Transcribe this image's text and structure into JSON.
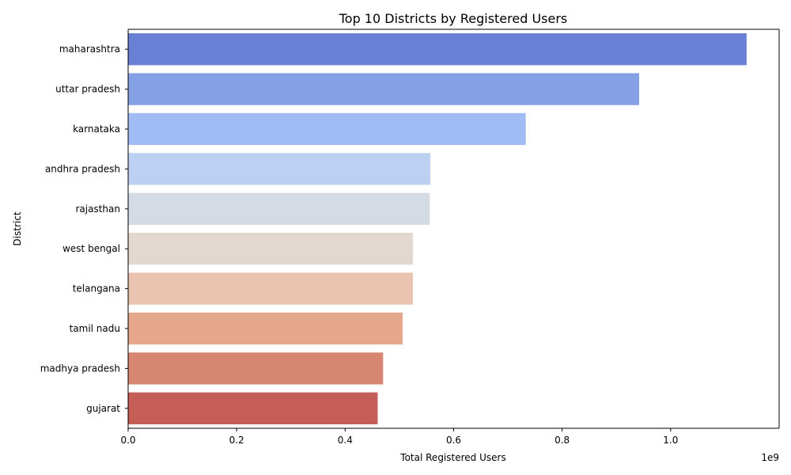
{
  "chart_data": {
    "type": "bar",
    "orientation": "horizontal",
    "title": "Top 10 Districts by Registered Users",
    "xlabel": "Total Registered Users",
    "ylabel": "District",
    "x_offset_text": "1e9",
    "xlim": [
      0,
      1200000000
    ],
    "x_ticks": [
      0,
      200000000,
      400000000,
      600000000,
      800000000,
      1000000000
    ],
    "x_tick_labels": [
      "0.0",
      "0.2",
      "0.4",
      "0.6",
      "0.8",
      "1.0"
    ],
    "grid": false,
    "categories": [
      "maharashtra",
      "uttar pradesh",
      "karnataka",
      "andhra pradesh",
      "rajasthan",
      "west bengal",
      "telangana",
      "tamil nadu",
      "madhya pradesh",
      "gujarat"
    ],
    "values": [
      1140000000,
      942000000,
      733000000,
      557000000,
      556000000,
      525000000,
      525000000,
      506000000,
      470000000,
      460000000
    ],
    "colors": [
      "#6a80d5",
      "#86a0e6",
      "#a1bbf4",
      "#bcd0f2",
      "#d5dbe5",
      "#e3d8d0",
      "#eac4b0",
      "#e5a88c",
      "#d78672",
      "#c45e56"
    ]
  }
}
